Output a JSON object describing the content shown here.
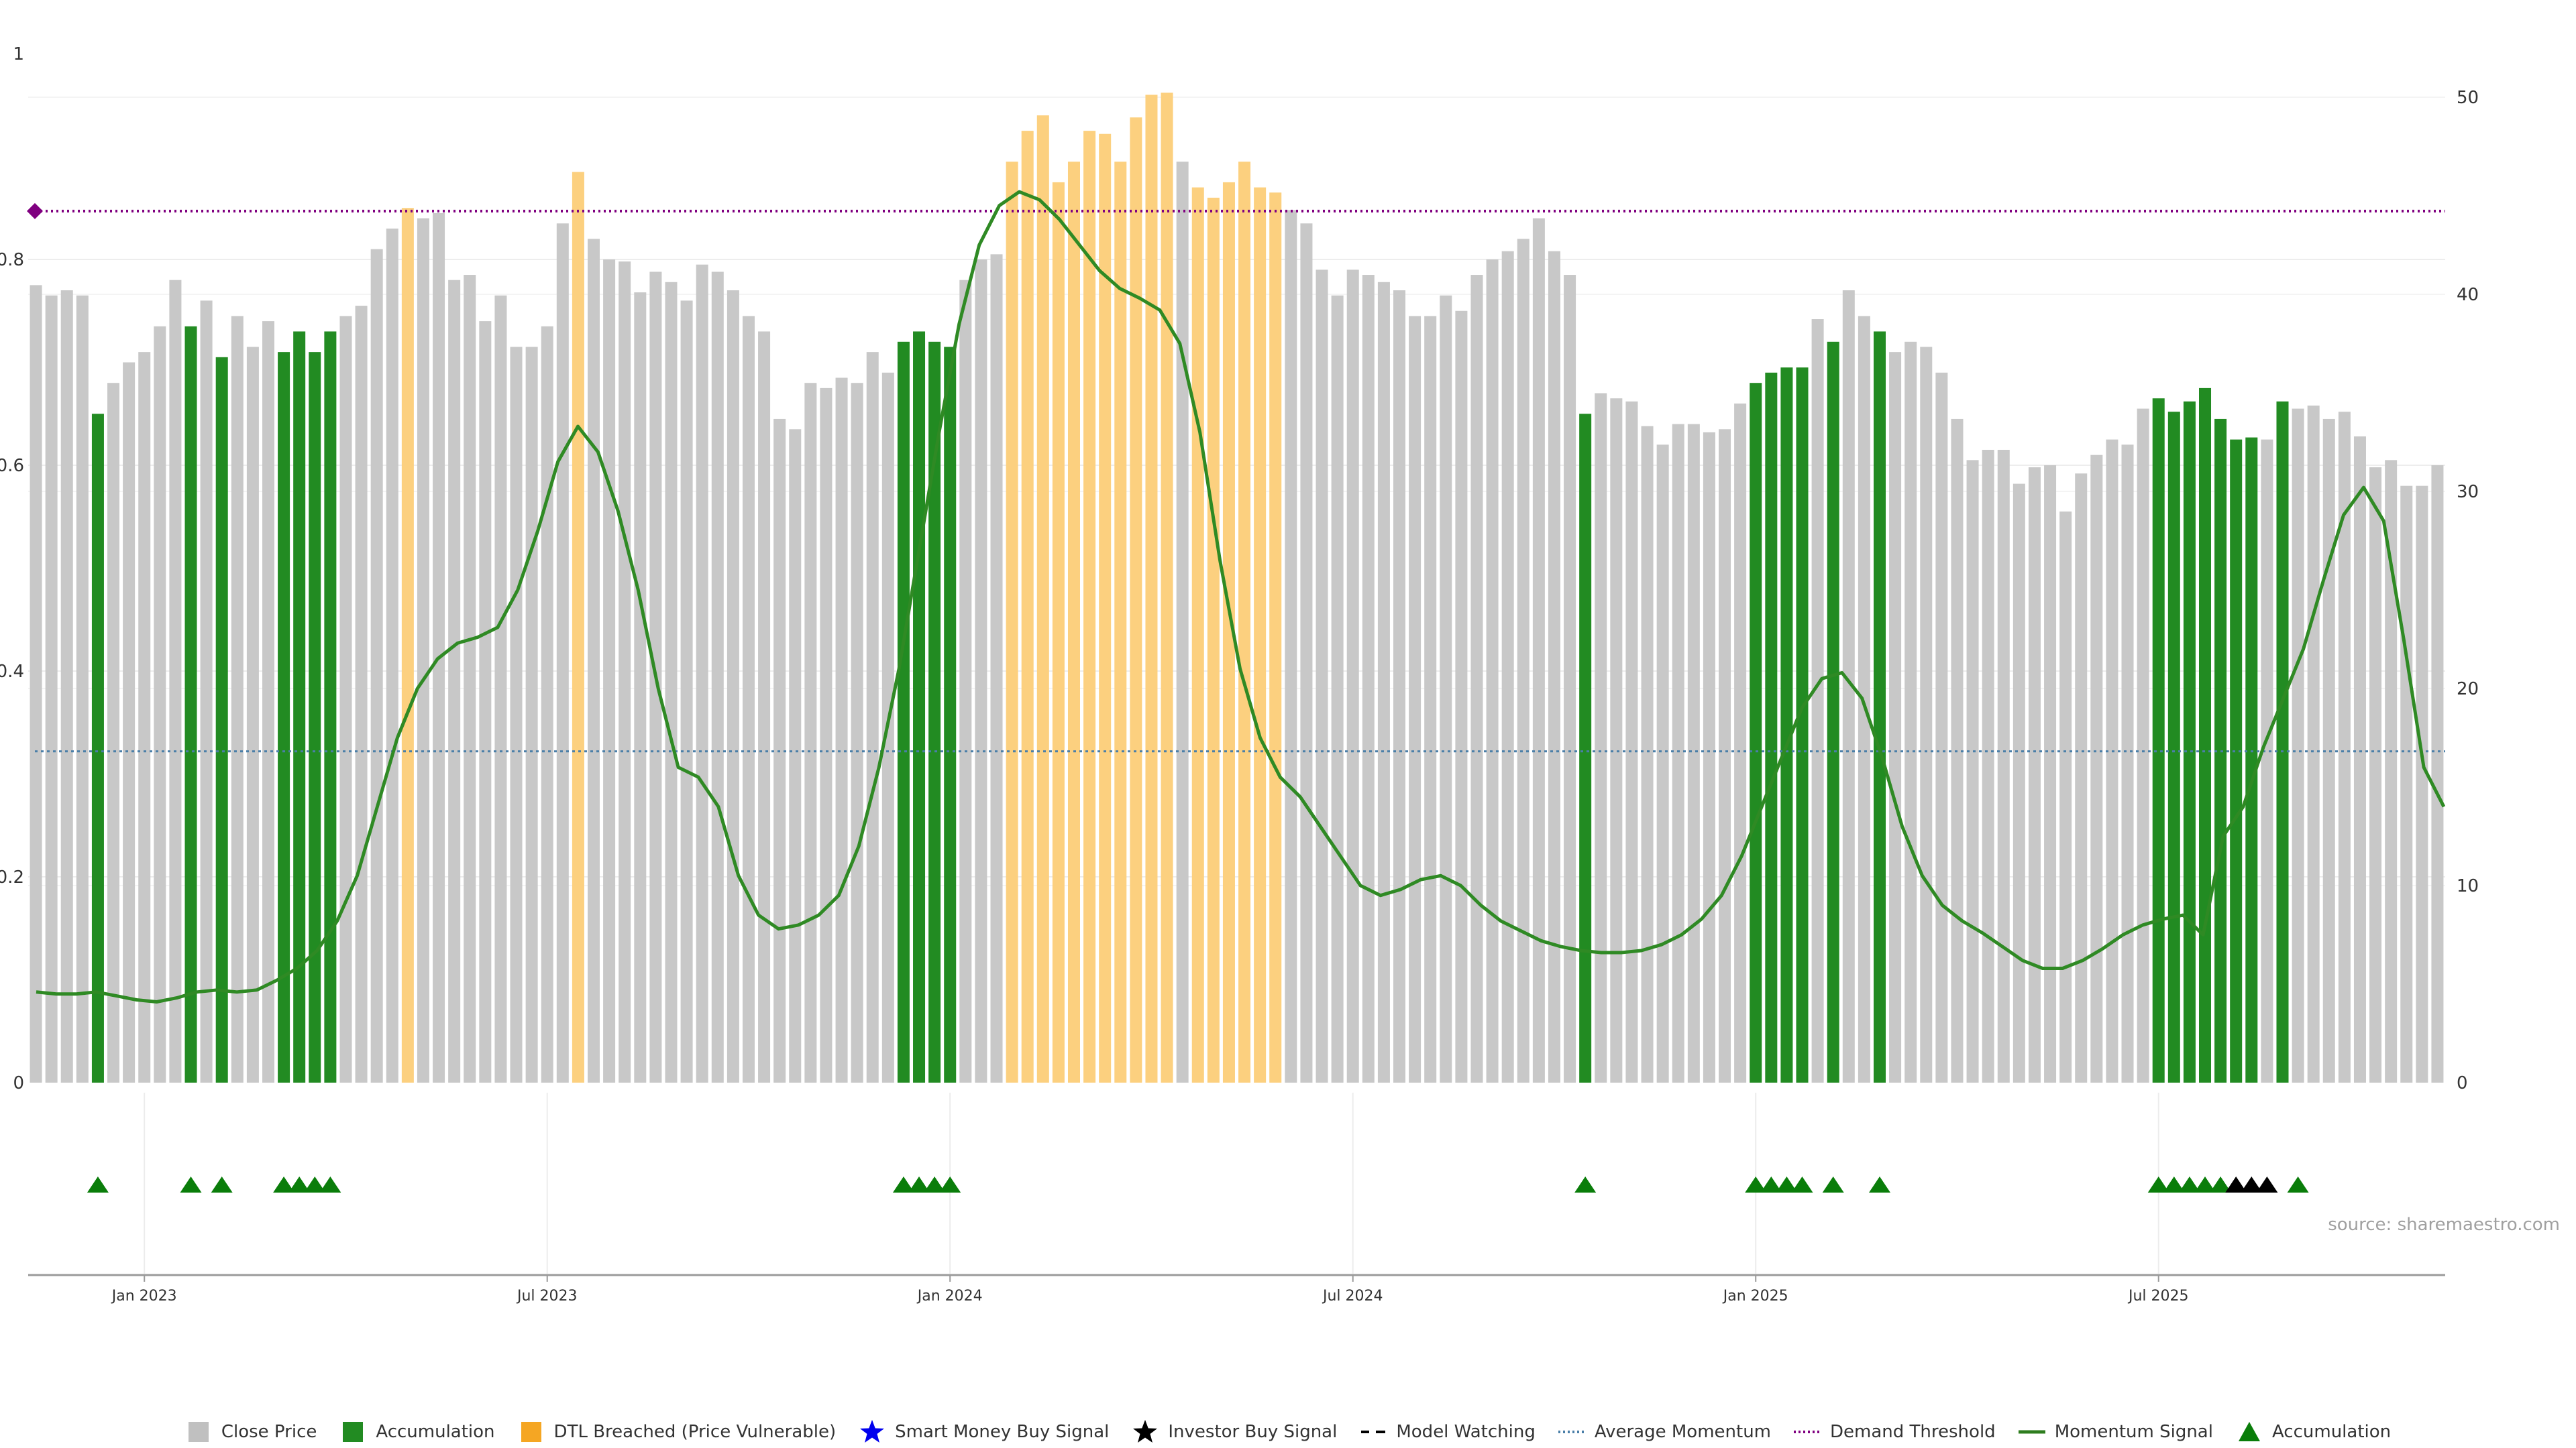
{
  "chart_data": {
    "type": "bar",
    "title": "",
    "source": "source: sharemaestro.com",
    "left_axis": {
      "ticks": [
        "0",
        "0.2",
        "0.4",
        "0.6",
        "0.8",
        "1"
      ],
      "range": [
        0,
        1
      ]
    },
    "right_axis": {
      "ticks": [
        "0",
        "10",
        "20",
        "30",
        "40",
        "50"
      ],
      "range": [
        0,
        50
      ]
    },
    "x_ticks": [
      "Jan 2023",
      "Jul 2023",
      "Jan 2024",
      "Jul 2024",
      "Jan 2025",
      "Jul 2025"
    ],
    "x_tick_weeks": [
      7,
      33,
      59,
      85,
      111,
      137
    ],
    "demand_threshold": 0.847,
    "average_momentum": 0.322,
    "close_price": [
      0.775,
      0.765,
      0.77,
      0.765,
      0.65,
      0.68,
      0.7,
      0.71,
      0.735,
      0.78,
      0.735,
      0.76,
      0.705,
      0.745,
      0.715,
      0.74,
      0.71,
      0.73,
      0.71,
      0.73,
      0.745,
      0.755,
      0.81,
      0.83,
      0.85,
      0.84,
      0.845,
      0.78,
      0.785,
      0.74,
      0.765,
      0.715,
      0.715,
      0.735,
      0.835,
      0.885,
      0.82,
      0.8,
      0.798,
      0.768,
      0.788,
      0.778,
      0.76,
      0.795,
      0.788,
      0.77,
      0.745,
      0.73,
      0.645,
      0.635,
      0.68,
      0.675,
      0.685,
      0.68,
      0.71,
      0.69,
      0.72,
      0.73,
      0.72,
      0.715,
      0.78,
      0.8,
      0.805,
      0.895,
      0.925,
      0.94,
      0.875,
      0.895,
      0.925,
      0.922,
      0.895,
      0.938,
      0.96,
      0.962,
      0.895,
      0.87,
      0.86,
      0.875,
      0.895,
      0.87,
      0.865,
      0.848,
      0.835,
      0.79,
      0.765,
      0.79,
      0.785,
      0.778,
      0.77,
      0.745,
      0.745,
      0.765,
      0.75,
      0.785,
      0.8,
      0.808,
      0.82,
      0.84,
      0.808,
      0.785,
      0.65,
      0.67,
      0.665,
      0.662,
      0.638,
      0.62,
      0.64,
      0.64,
      0.632,
      0.635,
      0.66,
      0.68,
      0.69,
      0.695,
      0.695,
      0.742,
      0.72,
      0.77,
      0.745,
      0.73,
      0.71,
      0.72,
      0.715,
      0.69,
      0.645,
      0.605,
      0.615,
      0.615,
      0.582,
      0.598,
      0.6,
      0.555,
      0.592,
      0.61,
      0.625,
      0.62,
      0.655,
      0.665,
      0.652,
      0.662,
      0.675,
      0.645,
      0.625,
      0.627,
      0.625,
      0.662,
      0.655,
      0.658,
      0.645,
      0.652,
      0.628,
      0.598,
      0.605,
      0.58,
      0.58,
      0.6
    ],
    "bar_state": [
      0,
      0,
      0,
      0,
      1,
      0,
      0,
      0,
      0,
      0,
      1,
      0,
      1,
      0,
      0,
      0,
      1,
      1,
      1,
      1,
      0,
      0,
      0,
      0,
      2,
      0,
      0,
      0,
      0,
      0,
      0,
      0,
      0,
      0,
      0,
      2,
      0,
      0,
      0,
      0,
      0,
      0,
      0,
      0,
      0,
      0,
      0,
      0,
      0,
      0,
      0,
      0,
      0,
      0,
      0,
      0,
      1,
      1,
      1,
      1,
      0,
      0,
      0,
      2,
      2,
      2,
      2,
      2,
      2,
      2,
      2,
      2,
      2,
      2,
      0,
      2,
      2,
      2,
      2,
      2,
      2,
      0,
      0,
      0,
      0,
      0,
      0,
      0,
      0,
      0,
      0,
      0,
      0,
      0,
      0,
      0,
      0,
      0,
      0,
      0,
      1,
      0,
      0,
      0,
      0,
      0,
      0,
      0,
      0,
      0,
      0,
      1,
      1,
      1,
      1,
      0,
      1,
      0,
      0,
      1,
      0,
      0,
      0,
      0,
      0,
      0,
      0,
      0,
      0,
      0,
      0,
      0,
      0,
      0,
      0,
      0,
      0,
      1,
      1,
      1,
      1,
      1,
      1,
      1,
      0,
      1,
      0,
      0,
      0,
      0,
      0,
      0,
      0,
      0,
      0,
      0
    ],
    "momentum_signal": [
      4.6,
      4.5,
      4.5,
      4.6,
      4.4,
      4.2,
      4.1,
      4.3,
      4.6,
      4.7,
      4.6,
      4.7,
      5.2,
      5.8,
      6.7,
      8.2,
      10.5,
      14.0,
      17.5,
      20.0,
      21.5,
      22.3,
      22.6,
      23.1,
      25.0,
      28.0,
      31.5,
      33.3,
      32.0,
      29.0,
      25.0,
      20.0,
      16.0,
      15.5,
      14.0,
      10.5,
      8.5,
      7.8,
      8.0,
      8.5,
      9.5,
      12.0,
      16.0,
      21.0,
      27.0,
      33.0,
      38.5,
      42.5,
      44.5,
      45.2,
      44.8,
      43.8,
      42.5,
      41.2,
      40.3,
      39.8,
      39.2,
      37.5,
      33.0,
      26.5,
      21.0,
      17.5,
      15.5,
      14.5,
      13.0,
      11.5,
      10.0,
      9.5,
      9.8,
      10.3,
      10.5,
      10.0,
      9.0,
      8.2,
      7.7,
      7.2,
      6.9,
      6.7,
      6.6,
      6.6,
      6.7,
      7.0,
      7.5,
      8.3,
      9.5,
      11.5,
      14.0,
      16.5,
      19.0,
      20.5,
      20.8,
      19.5,
      16.5,
      13.0,
      10.5,
      9.0,
      8.2,
      7.6,
      6.9,
      6.2,
      5.8,
      5.8,
      6.2,
      6.8,
      7.5,
      8.0,
      8.3,
      8.5,
      7.5,
      12.5,
      14.0,
      17.0,
      19.5,
      22.0,
      25.5,
      28.8,
      30.2,
      28.5,
      22.5,
      16.0,
      14.0
    ],
    "signals": {
      "accumulation_weeks": [
        4,
        10,
        12,
        16,
        17,
        18,
        19,
        56,
        57,
        58,
        59,
        100,
        111,
        112,
        113,
        114,
        116,
        119,
        137,
        138,
        139,
        140,
        141,
        146
      ],
      "investor_buy_weeks": [
        142,
        143,
        144
      ]
    },
    "legend": [
      {
        "label": "Close Price",
        "marker": "square",
        "color": "#c0c0c0"
      },
      {
        "label": "Accumulation",
        "marker": "square",
        "color": "#228b22"
      },
      {
        "label": "DTL Breached (Price Vulnerable)",
        "marker": "square",
        "color": "#f5a623"
      },
      {
        "label": "Smart Money Buy Signal",
        "marker": "star",
        "color": "#0000ee"
      },
      {
        "label": "Investor Buy Signal",
        "marker": "star",
        "color": "#000000"
      },
      {
        "label": "Model Watching",
        "marker": "dash",
        "color": "#000000"
      },
      {
        "label": "Average Momentum",
        "marker": "dotted",
        "color": "#4a7fa8"
      },
      {
        "label": "Demand Threshold",
        "marker": "dotted",
        "color": "#800080"
      },
      {
        "label": "Momentum Signal",
        "marker": "line",
        "color": "#2e7d1e"
      },
      {
        "label": "Accumulation",
        "marker": "triangle",
        "color": "#0a7d0a"
      }
    ],
    "colors": {
      "close": "#c8c8c8",
      "accumulation": "#228b22",
      "dtl": "#fcd07f",
      "momentum": "#2f8a24",
      "threshold": "#800080",
      "average": "#4a7fa8",
      "triangle": "#0a7d0a",
      "star_black": "#000000"
    }
  }
}
